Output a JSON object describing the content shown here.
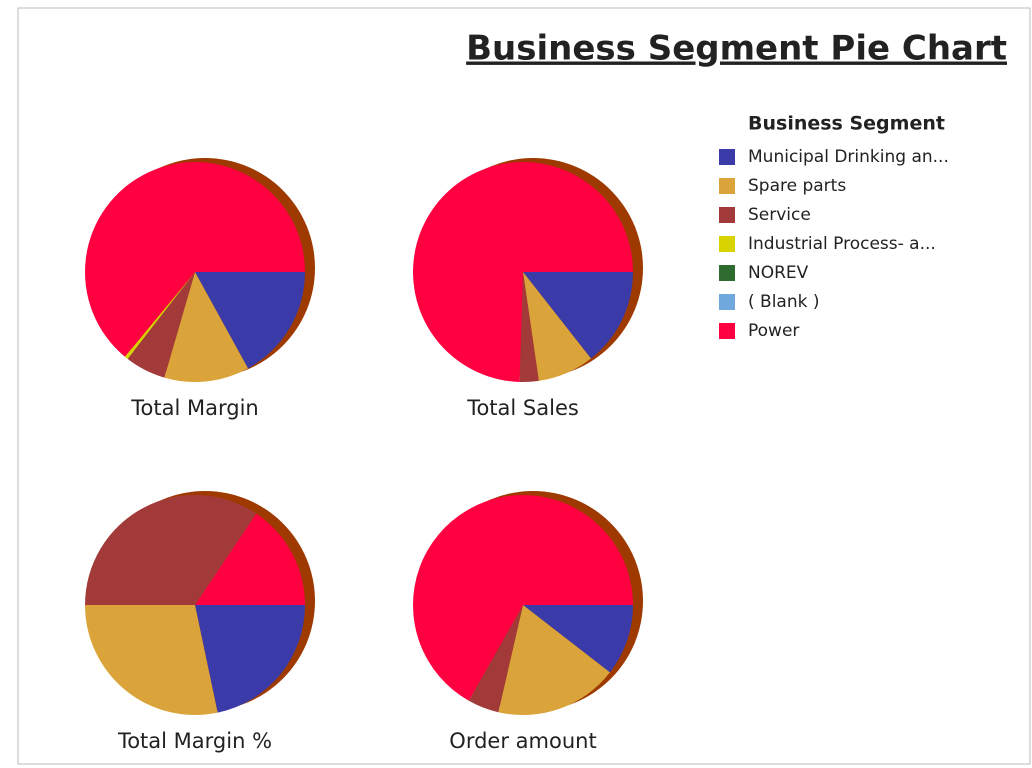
{
  "title": "Business Segment Pie Chart",
  "legend": {
    "title": "Business Segment",
    "items": [
      {
        "name": "Municipal Drinking an...",
        "color": "#3a3aa8"
      },
      {
        "name": "Spare parts",
        "color": "#dba43a"
      },
      {
        "name": "Service",
        "color": "#a33a3a"
      },
      {
        "name": "Industrial Process- a...",
        "color": "#d8d400"
      },
      {
        "name": "NOREV",
        "color": "#2e6b2e"
      },
      {
        "name": "( Blank )",
        "color": "#6fa8dc"
      },
      {
        "name": "Power",
        "color": "#ff0040"
      }
    ]
  },
  "chart_data": [
    {
      "type": "pie",
      "title": "Total Margin",
      "values": [
        17,
        12.5,
        6,
        0.5,
        0,
        0,
        64
      ]
    },
    {
      "type": "pie",
      "title": "Total Sales",
      "values": [
        14.4,
        8.3,
        2.8,
        0,
        0,
        0,
        74.5
      ]
    },
    {
      "type": "pie",
      "title": "Total Margin %",
      "values": [
        21.7,
        28.3,
        34.4,
        0,
        0,
        0,
        15.6
      ]
    },
    {
      "type": "pie",
      "title": "Order amount",
      "values": [
        10.5,
        18.1,
        4.6,
        0,
        0,
        0,
        66.8
      ]
    }
  ]
}
